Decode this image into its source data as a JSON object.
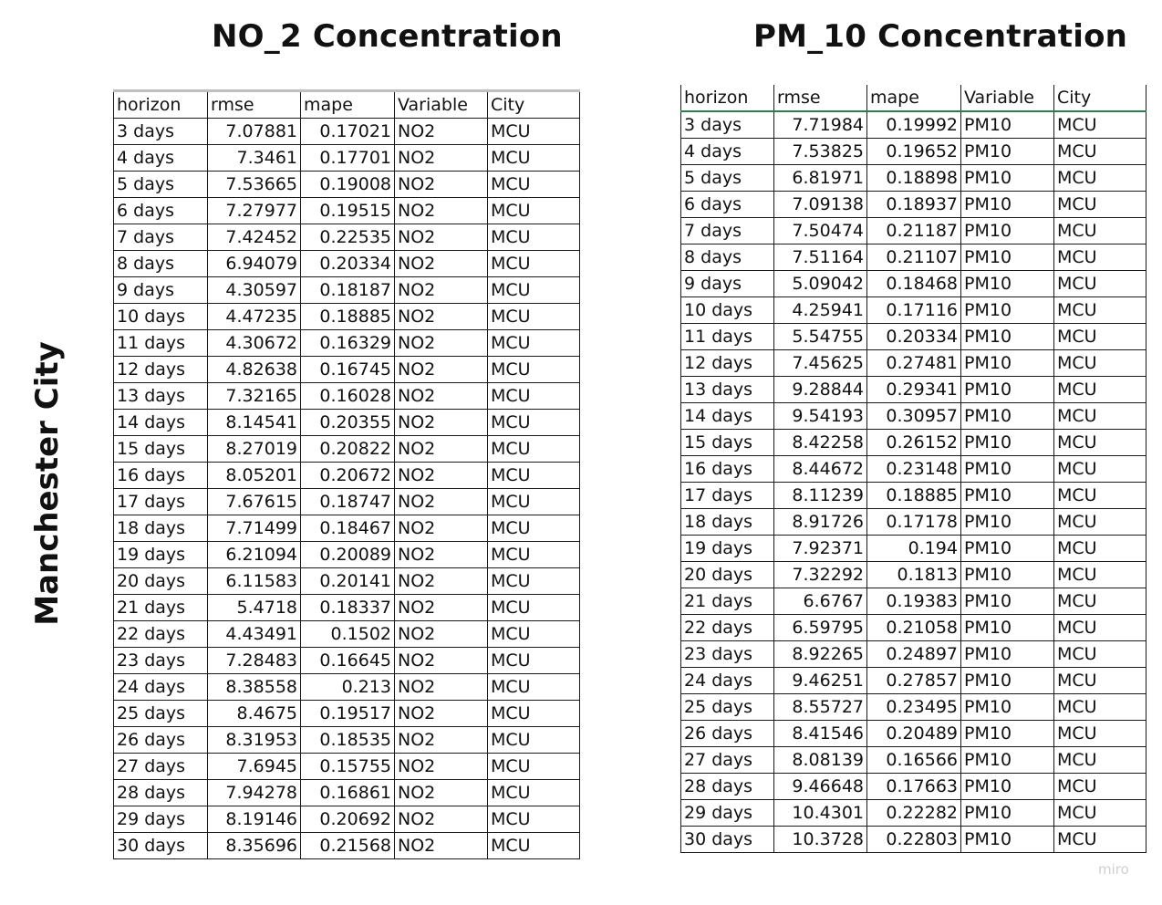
{
  "titles": {
    "left": "NO_2 Concentration",
    "right": "PM_10 Concentration",
    "side": "Manchester City"
  },
  "no2_table": {
    "headers": [
      "horizon",
      "rmse",
      "mape",
      "Variable",
      "City"
    ],
    "rows": [
      [
        "3 days",
        "7.07881",
        "0.17021",
        "NO2",
        "MCU"
      ],
      [
        "4 days",
        "7.3461",
        "0.17701",
        "NO2",
        "MCU"
      ],
      [
        "5 days",
        "7.53665",
        "0.19008",
        "NO2",
        "MCU"
      ],
      [
        "6 days",
        "7.27977",
        "0.19515",
        "NO2",
        "MCU"
      ],
      [
        "7 days",
        "7.42452",
        "0.22535",
        "NO2",
        "MCU"
      ],
      [
        "8 days",
        "6.94079",
        "0.20334",
        "NO2",
        "MCU"
      ],
      [
        "9 days",
        "4.30597",
        "0.18187",
        "NO2",
        "MCU"
      ],
      [
        "10 days",
        "4.47235",
        "0.18885",
        "NO2",
        "MCU"
      ],
      [
        "11 days",
        "4.30672",
        "0.16329",
        "NO2",
        "MCU"
      ],
      [
        "12 days",
        "4.82638",
        "0.16745",
        "NO2",
        "MCU"
      ],
      [
        "13 days",
        "7.32165",
        "0.16028",
        "NO2",
        "MCU"
      ],
      [
        "14 days",
        "8.14541",
        "0.20355",
        "NO2",
        "MCU"
      ],
      [
        "15 days",
        "8.27019",
        "0.20822",
        "NO2",
        "MCU"
      ],
      [
        "16 days",
        "8.05201",
        "0.20672",
        "NO2",
        "MCU"
      ],
      [
        "17 days",
        "7.67615",
        "0.18747",
        "NO2",
        "MCU"
      ],
      [
        "18 days",
        "7.71499",
        "0.18467",
        "NO2",
        "MCU"
      ],
      [
        "19 days",
        "6.21094",
        "0.20089",
        "NO2",
        "MCU"
      ],
      [
        "20 days",
        "6.11583",
        "0.20141",
        "NO2",
        "MCU"
      ],
      [
        "21 days",
        "5.4718",
        "0.18337",
        "NO2",
        "MCU"
      ],
      [
        "22 days",
        "4.43491",
        "0.1502",
        "NO2",
        "MCU"
      ],
      [
        "23 days",
        "7.28483",
        "0.16645",
        "NO2",
        "MCU"
      ],
      [
        "24 days",
        "8.38558",
        "0.213",
        "NO2",
        "MCU"
      ],
      [
        "25 days",
        "8.4675",
        "0.19517",
        "NO2",
        "MCU"
      ],
      [
        "26 days",
        "8.31953",
        "0.18535",
        "NO2",
        "MCU"
      ],
      [
        "27 days",
        "7.6945",
        "0.15755",
        "NO2",
        "MCU"
      ],
      [
        "28 days",
        "7.94278",
        "0.16861",
        "NO2",
        "MCU"
      ],
      [
        "29 days",
        "8.19146",
        "0.20692",
        "NO2",
        "MCU"
      ],
      [
        "30 days",
        "8.35696",
        "0.21568",
        "NO2",
        "MCU"
      ]
    ]
  },
  "pm10_table": {
    "headers": [
      "horizon",
      "rmse",
      "mape",
      "Variable",
      "City"
    ],
    "rows": [
      [
        "3 days",
        "7.71984",
        "0.19992",
        "PM10",
        "MCU"
      ],
      [
        "4 days",
        "7.53825",
        "0.19652",
        "PM10",
        "MCU"
      ],
      [
        "5 days",
        "6.81971",
        "0.18898",
        "PM10",
        "MCU"
      ],
      [
        "6 days",
        "7.09138",
        "0.18937",
        "PM10",
        "MCU"
      ],
      [
        "7 days",
        "7.50474",
        "0.21187",
        "PM10",
        "MCU"
      ],
      [
        "8 days",
        "7.51164",
        "0.21107",
        "PM10",
        "MCU"
      ],
      [
        "9 days",
        "5.09042",
        "0.18468",
        "PM10",
        "MCU"
      ],
      [
        "10 days",
        "4.25941",
        "0.17116",
        "PM10",
        "MCU"
      ],
      [
        "11 days",
        "5.54755",
        "0.20334",
        "PM10",
        "MCU"
      ],
      [
        "12 days",
        "7.45625",
        "0.27481",
        "PM10",
        "MCU"
      ],
      [
        "13 days",
        "9.28844",
        "0.29341",
        "PM10",
        "MCU"
      ],
      [
        "14 days",
        "9.54193",
        "0.30957",
        "PM10",
        "MCU"
      ],
      [
        "15 days",
        "8.42258",
        "0.26152",
        "PM10",
        "MCU"
      ],
      [
        "16 days",
        "8.44672",
        "0.23148",
        "PM10",
        "MCU"
      ],
      [
        "17 days",
        "8.11239",
        "0.18885",
        "PM10",
        "MCU"
      ],
      [
        "18 days",
        "8.91726",
        "0.17178",
        "PM10",
        "MCU"
      ],
      [
        "19 days",
        "7.92371",
        "0.194",
        "PM10",
        "MCU"
      ],
      [
        "20 days",
        "7.32292",
        "0.1813",
        "PM10",
        "MCU"
      ],
      [
        "21 days",
        "6.6767",
        "0.19383",
        "PM10",
        "MCU"
      ],
      [
        "22 days",
        "6.59795",
        "0.21058",
        "PM10",
        "MCU"
      ],
      [
        "23 days",
        "8.92265",
        "0.24897",
        "PM10",
        "MCU"
      ],
      [
        "24 days",
        "9.46251",
        "0.27857",
        "PM10",
        "MCU"
      ],
      [
        "25 days",
        "8.55727",
        "0.23495",
        "PM10",
        "MCU"
      ],
      [
        "26 days",
        "8.41546",
        "0.20489",
        "PM10",
        "MCU"
      ],
      [
        "27 days",
        "8.08139",
        "0.16566",
        "PM10",
        "MCU"
      ],
      [
        "28 days",
        "9.46648",
        "0.17663",
        "PM10",
        "MCU"
      ],
      [
        "29 days",
        "10.4301",
        "0.22282",
        "PM10",
        "MCU"
      ],
      [
        "30 days",
        "10.3728",
        "0.22803",
        "PM10",
        "MCU"
      ]
    ]
  },
  "watermark": "miro"
}
